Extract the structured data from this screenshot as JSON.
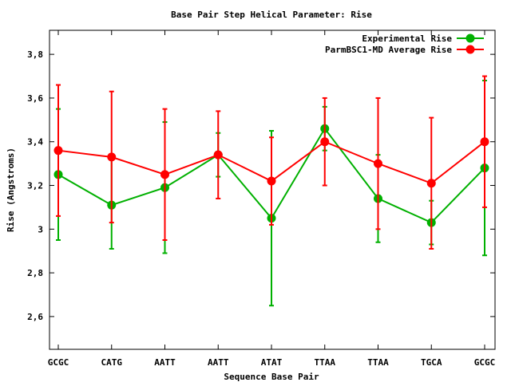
{
  "chart_data": {
    "type": "line",
    "title": "Base Pair Step Helical Parameter: Rise",
    "xlabel": "Sequence Base Pair",
    "ylabel": "Rise (Angstroms)",
    "categories": [
      "GCGC",
      "CATG",
      "AATT",
      "AATT",
      "ATAT",
      "TTAA",
      "TTAA",
      "TGCA",
      "GCGC"
    ],
    "ylim": [
      2.45,
      3.91
    ],
    "yticks": [
      "2,6",
      "2,8",
      "3",
      "3,2",
      "3,4",
      "3,6",
      "3,8"
    ],
    "ytick_values": [
      2.6,
      2.8,
      3.0,
      3.2,
      3.4,
      3.6,
      3.8
    ],
    "grid": false,
    "legend_placement": "top-right",
    "series": [
      {
        "name": "Experimental Rise",
        "color": "#00b000",
        "values": [
          3.25,
          3.11,
          3.19,
          3.34,
          3.05,
          3.46,
          3.14,
          3.03,
          3.28
        ],
        "err_low": [
          2.95,
          2.91,
          2.89,
          3.24,
          2.65,
          3.36,
          2.94,
          2.93,
          2.88
        ],
        "err_high": [
          3.55,
          3.32,
          3.49,
          3.44,
          3.45,
          3.56,
          3.34,
          3.13,
          3.68
        ]
      },
      {
        "name": "ParmBSC1-MD Average Rise",
        "color": "#ff0000",
        "values": [
          3.36,
          3.33,
          3.25,
          3.34,
          3.22,
          3.4,
          3.3,
          3.21,
          3.4
        ],
        "err_low": [
          3.06,
          3.03,
          2.95,
          3.14,
          3.02,
          3.2,
          3.0,
          2.91,
          3.1
        ],
        "err_high": [
          3.66,
          3.63,
          3.55,
          3.54,
          3.42,
          3.6,
          3.6,
          3.51,
          3.7
        ]
      }
    ]
  }
}
